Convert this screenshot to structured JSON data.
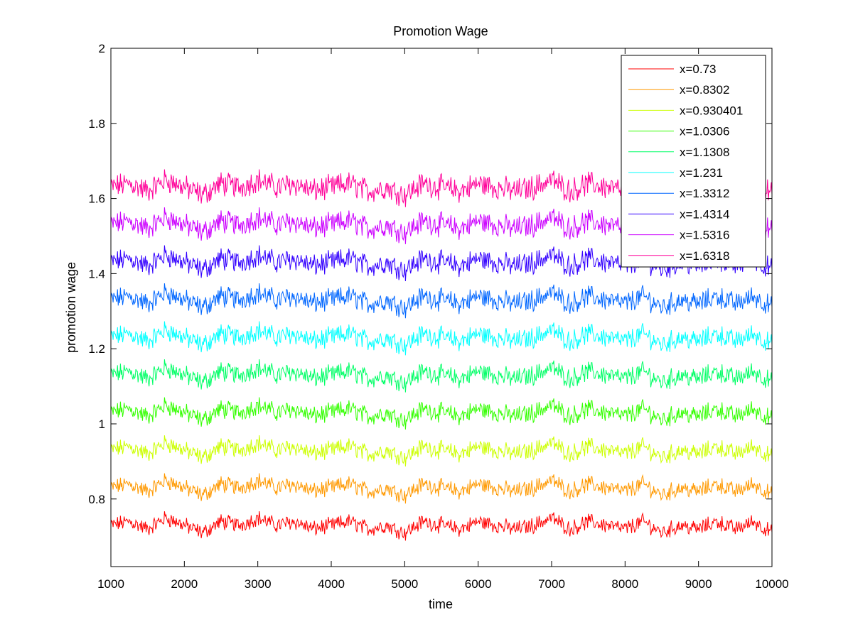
{
  "chart_data": {
    "type": "line",
    "title": "Promotion Wage",
    "xlabel": "time",
    "ylabel": "promotion wage",
    "xlim": [
      1000,
      10000
    ],
    "ylim": [
      0.62,
      2.0
    ],
    "xticks": [
      1000,
      2000,
      3000,
      4000,
      5000,
      6000,
      7000,
      8000,
      9000,
      10000
    ],
    "xtick_labels": [
      "1000",
      "2000",
      "3000",
      "4000",
      "5000",
      "6000",
      "7000",
      "8000",
      "9000",
      "10000"
    ],
    "yticks": [
      0.8,
      1.0,
      1.2,
      1.4,
      1.6,
      1.8,
      2.0
    ],
    "ytick_labels": [
      "0.8",
      "1",
      "1.2",
      "1.4",
      "1.6",
      "1.8",
      "2"
    ],
    "grid": false,
    "legend_position": "top-right",
    "x": [
      1000,
      1250,
      1500,
      1750,
      2000,
      2250,
      2500,
      2750,
      3000,
      3250,
      3500,
      3750,
      4000,
      4250,
      4500,
      4750,
      5000,
      5250,
      5500,
      5750,
      6000,
      6250,
      6500,
      6750,
      7000,
      7250,
      7500,
      7750,
      8000,
      8250,
      8500,
      8750,
      9000,
      9250,
      9500,
      9750,
      10000
    ],
    "series": [
      {
        "name": "x=0.73",
        "color": "#ff0000",
        "values": [
          0.73,
          0.74,
          0.72,
          0.75,
          0.73,
          0.71,
          0.74,
          0.73,
          0.75,
          0.73,
          0.74,
          0.72,
          0.73,
          0.74,
          0.72,
          0.73,
          0.71,
          0.74,
          0.73,
          0.72,
          0.74,
          0.73,
          0.72,
          0.73,
          0.75,
          0.72,
          0.74,
          0.73,
          0.72,
          0.74,
          0.71,
          0.73,
          0.72,
          0.74,
          0.72,
          0.74,
          0.71
        ]
      },
      {
        "name": "x=0.8302",
        "color": "#ff9900",
        "values": [
          0.83,
          0.84,
          0.82,
          0.85,
          0.83,
          0.81,
          0.84,
          0.83,
          0.85,
          0.83,
          0.84,
          0.82,
          0.83,
          0.84,
          0.82,
          0.83,
          0.81,
          0.84,
          0.83,
          0.82,
          0.84,
          0.83,
          0.82,
          0.83,
          0.85,
          0.82,
          0.84,
          0.83,
          0.82,
          0.84,
          0.81,
          0.83,
          0.82,
          0.84,
          0.82,
          0.84,
          0.81
        ]
      },
      {
        "name": "x=0.930401",
        "color": "#ccff00",
        "values": [
          0.93,
          0.94,
          0.92,
          0.95,
          0.93,
          0.91,
          0.94,
          0.93,
          0.95,
          0.93,
          0.94,
          0.92,
          0.93,
          0.94,
          0.92,
          0.93,
          0.91,
          0.94,
          0.93,
          0.92,
          0.94,
          0.93,
          0.92,
          0.93,
          0.95,
          0.92,
          0.94,
          0.93,
          0.92,
          0.94,
          0.91,
          0.93,
          0.92,
          0.94,
          0.92,
          0.94,
          0.91
        ]
      },
      {
        "name": "x=1.0306",
        "color": "#33ff00",
        "values": [
          1.03,
          1.04,
          1.02,
          1.05,
          1.03,
          1.01,
          1.04,
          1.03,
          1.05,
          1.03,
          1.04,
          1.02,
          1.03,
          1.04,
          1.02,
          1.03,
          1.01,
          1.04,
          1.03,
          1.02,
          1.04,
          1.03,
          1.02,
          1.03,
          1.05,
          1.02,
          1.04,
          1.03,
          1.02,
          1.04,
          1.01,
          1.03,
          1.02,
          1.04,
          1.02,
          1.04,
          1.01
        ]
      },
      {
        "name": "x=1.1308",
        "color": "#00ff66",
        "values": [
          1.13,
          1.14,
          1.12,
          1.15,
          1.13,
          1.11,
          1.14,
          1.13,
          1.15,
          1.13,
          1.14,
          1.12,
          1.13,
          1.14,
          1.12,
          1.13,
          1.11,
          1.14,
          1.13,
          1.12,
          1.14,
          1.13,
          1.12,
          1.13,
          1.15,
          1.12,
          1.14,
          1.13,
          1.12,
          1.14,
          1.11,
          1.13,
          1.12,
          1.14,
          1.12,
          1.14,
          1.11
        ]
      },
      {
        "name": "x=1.231",
        "color": "#00ffff",
        "values": [
          1.23,
          1.24,
          1.22,
          1.25,
          1.23,
          1.21,
          1.24,
          1.23,
          1.25,
          1.23,
          1.24,
          1.22,
          1.23,
          1.24,
          1.22,
          1.23,
          1.21,
          1.24,
          1.23,
          1.22,
          1.24,
          1.23,
          1.22,
          1.23,
          1.25,
          1.22,
          1.24,
          1.23,
          1.22,
          1.24,
          1.21,
          1.23,
          1.22,
          1.24,
          1.22,
          1.24,
          1.21
        ]
      },
      {
        "name": "x=1.3312",
        "color": "#0066ff",
        "values": [
          1.33,
          1.34,
          1.32,
          1.35,
          1.33,
          1.31,
          1.34,
          1.33,
          1.35,
          1.33,
          1.34,
          1.32,
          1.33,
          1.34,
          1.32,
          1.33,
          1.31,
          1.34,
          1.33,
          1.32,
          1.34,
          1.33,
          1.32,
          1.33,
          1.35,
          1.32,
          1.34,
          1.33,
          1.32,
          1.34,
          1.31,
          1.33,
          1.32,
          1.34,
          1.32,
          1.34,
          1.31
        ]
      },
      {
        "name": "x=1.4314",
        "color": "#3300ff",
        "values": [
          1.43,
          1.44,
          1.42,
          1.45,
          1.43,
          1.41,
          1.44,
          1.43,
          1.45,
          1.43,
          1.44,
          1.42,
          1.43,
          1.44,
          1.42,
          1.43,
          1.41,
          1.44,
          1.43,
          1.42,
          1.44,
          1.43,
          1.42,
          1.43,
          1.45,
          1.42,
          1.44,
          1.43,
          1.42,
          1.44,
          1.41,
          1.43,
          1.42,
          1.44,
          1.42,
          1.44,
          1.41
        ]
      },
      {
        "name": "x=1.5316",
        "color": "#cc00ff",
        "values": [
          1.53,
          1.54,
          1.52,
          1.55,
          1.53,
          1.51,
          1.54,
          1.53,
          1.55,
          1.53,
          1.54,
          1.52,
          1.53,
          1.54,
          1.52,
          1.53,
          1.51,
          1.54,
          1.53,
          1.52,
          1.54,
          1.53,
          1.52,
          1.53,
          1.55,
          1.52,
          1.54,
          1.53,
          1.52,
          1.54,
          1.51,
          1.53,
          1.52,
          1.54,
          1.52,
          1.54,
          1.51
        ]
      },
      {
        "name": "x=1.6318",
        "color": "#ff0099",
        "values": [
          1.63,
          1.64,
          1.62,
          1.65,
          1.63,
          1.61,
          1.64,
          1.63,
          1.65,
          1.63,
          1.64,
          1.62,
          1.63,
          1.64,
          1.62,
          1.63,
          1.61,
          1.64,
          1.63,
          1.62,
          1.64,
          1.63,
          1.62,
          1.63,
          1.65,
          1.62,
          1.64,
          1.63,
          1.62,
          1.64,
          1.61,
          1.63,
          1.62,
          1.64,
          1.62,
          1.64,
          1.61
        ]
      }
    ]
  }
}
